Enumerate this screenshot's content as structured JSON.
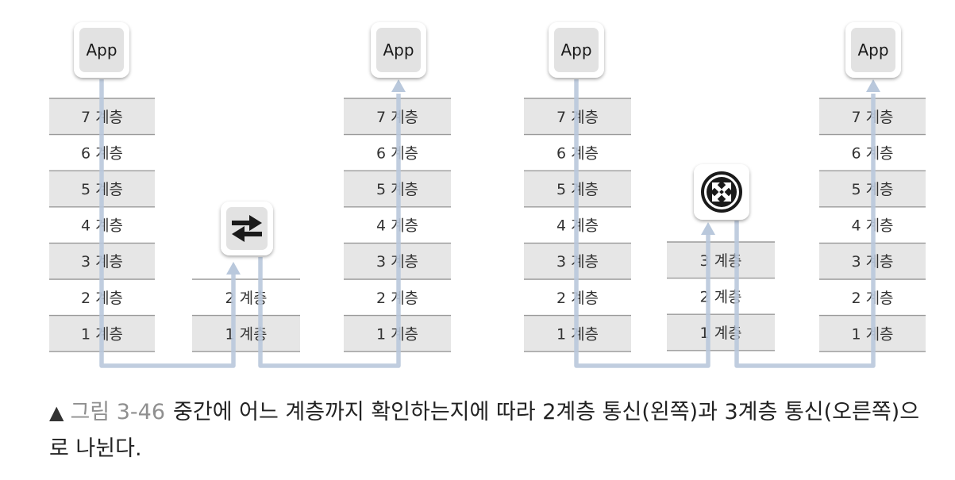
{
  "app_label": "App",
  "stacks": [
    {
      "name": "left-sender",
      "layers": [
        "7 계층",
        "6 계층",
        "5 계층",
        "4 계층",
        "3 계층",
        "2 계층",
        "1 계층"
      ],
      "shaded": [
        true,
        false,
        true,
        false,
        true,
        false,
        true
      ]
    },
    {
      "name": "left-switch",
      "layers": [
        "2 계층",
        "1 계층"
      ],
      "shaded": [
        false,
        true
      ]
    },
    {
      "name": "left-receiver",
      "layers": [
        "7 계층",
        "6 계층",
        "5 계층",
        "4 계층",
        "3 계층",
        "2 계층",
        "1 계층"
      ],
      "shaded": [
        true,
        false,
        true,
        false,
        true,
        false,
        true
      ]
    },
    {
      "name": "right-sender",
      "layers": [
        "7 계층",
        "6 계층",
        "5 계층",
        "4 계층",
        "3 계층",
        "2 계층",
        "1 계층"
      ],
      "shaded": [
        true,
        false,
        true,
        false,
        true,
        false,
        true
      ]
    },
    {
      "name": "right-router",
      "layers": [
        "3 계층",
        "2 계층",
        "1 계층"
      ],
      "shaded": [
        true,
        false,
        true
      ]
    },
    {
      "name": "right-receiver",
      "layers": [
        "7 계층",
        "6 계층",
        "5 계층",
        "4 계층",
        "3 계층",
        "2 계층",
        "1 계층"
      ],
      "shaded": [
        true,
        false,
        true,
        false,
        true,
        false,
        true
      ]
    }
  ],
  "devices": {
    "switch": "switch-arrows-icon",
    "router": "router-cross-icon"
  },
  "colors": {
    "shaded_layer": "#e6e6e6",
    "divider": "#9a9a9a",
    "path_line": "#b9c8dc",
    "app_box": "#e2e2e2",
    "device_icon": "#1a1a1a"
  },
  "caption": {
    "marker": "▲",
    "figure": "그림 3-46",
    "text": "중간에 어느 계층까지 확인하는지에 따라 2계층 통신(왼쪽)과 3계층 통신(오른쪽)으로 나뉜다."
  }
}
